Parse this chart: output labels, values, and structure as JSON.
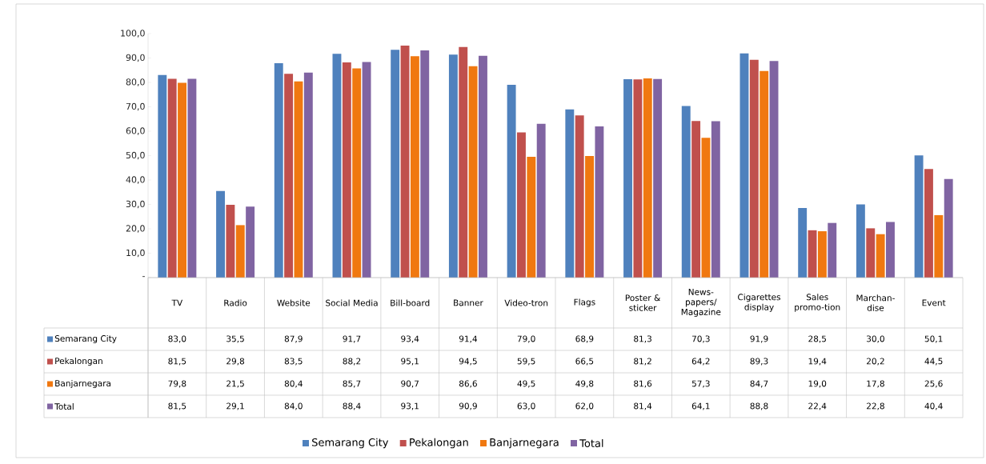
{
  "chart_data": {
    "type": "bar",
    "categories": [
      "TV",
      "Radio",
      "Website",
      "Social Media",
      "Bill-board",
      "Banner",
      "Video-tron",
      "Flags",
      "Poster & sticker",
      "News-papers/ Magazine",
      "Cigarettes display",
      "Sales promo-tion",
      "Marchan-dise",
      "Event"
    ],
    "series": [
      {
        "name": "Semarang City",
        "color": "#4f81bd",
        "values": [
          83.0,
          35.5,
          87.9,
          91.7,
          93.4,
          91.4,
          79.0,
          68.9,
          81.3,
          70.3,
          91.9,
          28.5,
          30.0,
          50.1
        ],
        "value_labels": [
          "83,0",
          "35,5",
          "87,9",
          "91,7",
          "93,4",
          "91,4",
          "79,0",
          "68,9",
          "81,3",
          "70,3",
          "91,9",
          "28,5",
          "30,0",
          "50,1"
        ]
      },
      {
        "name": "Pekalongan",
        "color": "#c0504d",
        "values": [
          81.5,
          29.8,
          83.5,
          88.2,
          95.1,
          94.5,
          59.5,
          66.5,
          81.2,
          64.2,
          89.3,
          19.4,
          20.2,
          44.5
        ],
        "value_labels": [
          "81,5",
          "29,8",
          "83,5",
          "88,2",
          "95,1",
          "94,5",
          "59,5",
          "66,5",
          "81,2",
          "64,2",
          "89,3",
          "19,4",
          "20,2",
          "44,5"
        ]
      },
      {
        "name": "Banjarnegara",
        "color": "#f07810",
        "values": [
          79.8,
          21.5,
          80.4,
          85.7,
          90.7,
          86.6,
          49.5,
          49.8,
          81.6,
          57.3,
          84.7,
          19.0,
          17.8,
          25.6
        ],
        "value_labels": [
          "79,8",
          "21,5",
          "80,4",
          "85,7",
          "90,7",
          "86,6",
          "49,5",
          "49,8",
          "81,6",
          "57,3",
          "84,7",
          "19,0",
          "17,8",
          "25,6"
        ]
      },
      {
        "name": "Total",
        "color": "#8064a2",
        "values": [
          81.5,
          29.1,
          84.0,
          88.4,
          93.1,
          90.9,
          63.0,
          62.0,
          81.4,
          64.1,
          88.8,
          22.4,
          22.8,
          40.4
        ],
        "value_labels": [
          "81,5",
          "29,1",
          "84,0",
          "88,4",
          "93,1",
          "90,9",
          "63,0",
          "62,0",
          "81,4",
          "64,1",
          "88,8",
          "22,4",
          "22,8",
          "40,4"
        ]
      }
    ],
    "ylim": [
      0,
      100
    ],
    "yticks": [
      {
        "value": 0,
        "label": "-"
      },
      {
        "value": 10,
        "label": "10,0"
      },
      {
        "value": 20,
        "label": "20,0"
      },
      {
        "value": 30,
        "label": "30,0"
      },
      {
        "value": 40,
        "label": "40,0"
      },
      {
        "value": 50,
        "label": "50,0"
      },
      {
        "value": 60,
        "label": "60,0"
      },
      {
        "value": 70,
        "label": "70,0"
      },
      {
        "value": 80,
        "label": "80,0"
      },
      {
        "value": 90,
        "label": "90,0"
      },
      {
        "value": 100,
        "label": "100,0"
      }
    ],
    "legend": "bottom"
  }
}
